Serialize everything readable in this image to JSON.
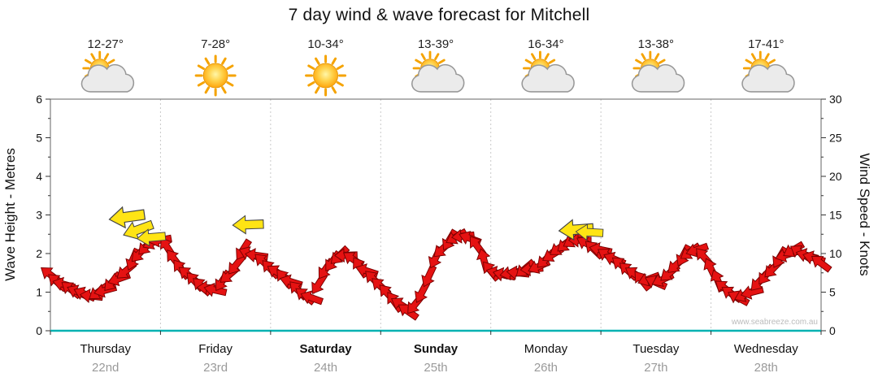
{
  "title": "7 day wind & wave forecast for Mitchell",
  "days": [
    {
      "name": "Thursday",
      "date": "22nd",
      "temp": "12-27°",
      "icon": "sun-cloud-icon",
      "bold": false
    },
    {
      "name": "Friday",
      "date": "23rd",
      "temp": "7-28°",
      "icon": "sun-icon",
      "bold": false
    },
    {
      "name": "Saturday",
      "date": "24th",
      "temp": "10-34°",
      "icon": "sun-icon",
      "bold": true
    },
    {
      "name": "Sunday",
      "date": "25th",
      "temp": "13-39°",
      "icon": "sun-cloud-icon",
      "bold": true
    },
    {
      "name": "Monday",
      "date": "26th",
      "temp": "16-34°",
      "icon": "sun-cloud-icon",
      "bold": false
    },
    {
      "name": "Tuesday",
      "date": "27th",
      "temp": "13-38°",
      "icon": "sun-cloud-icon",
      "bold": false
    },
    {
      "name": "Wednesday",
      "date": "28th",
      "temp": "17-41°",
      "icon": "sun-cloud-icon",
      "bold": false
    }
  ],
  "chart_data": {
    "type": "line",
    "title": "7 day wind & wave forecast for Mitchell",
    "ylabel_left": "Wave Height - Metres",
    "ylabel_right": "Wind Speed - Knots",
    "ylim_left": [
      0,
      6
    ],
    "ylim_right": [
      0,
      30
    ],
    "yticks_left": [
      0,
      1,
      2,
      3,
      4,
      5,
      6
    ],
    "yticks_right": [
      0,
      5,
      10,
      15,
      20,
      25,
      30
    ],
    "x_days": [
      "Thursday 22nd",
      "Friday 23rd",
      "Saturday 24th",
      "Sunday 25th",
      "Monday 26th",
      "Tuesday 27th",
      "Wednesday 28th"
    ],
    "points_per_day": 8,
    "series_name": "Wind/wave arrows (red)",
    "wave_height_m": [
      1.45,
      1.2,
      1.0,
      0.9,
      1.05,
      1.35,
      1.85,
      2.2,
      2.35,
      1.85,
      1.45,
      1.15,
      1.05,
      1.45,
      2.1,
      1.95,
      1.6,
      1.35,
      1.05,
      0.85,
      1.6,
      1.95,
      1.85,
      1.55,
      1.15,
      0.75,
      0.5,
      1.0,
      1.9,
      2.35,
      2.45,
      2.2,
      1.55,
      1.45,
      1.5,
      1.6,
      1.85,
      2.15,
      2.35,
      2.25,
      2.1,
      1.85,
      1.55,
      1.3,
      1.25,
      1.5,
      1.95,
      2.1,
      1.6,
      1.1,
      0.85,
      1.0,
      1.45,
      1.9,
      2.1,
      1.95,
      1.75
    ],
    "strong_wind_arrows": [
      {
        "day": 0.7,
        "value": 2.95,
        "rot": 172,
        "scale": 1.5
      },
      {
        "day": 0.8,
        "value": 2.62,
        "rot": 160,
        "scale": 1.3
      },
      {
        "day": 0.92,
        "value": 2.42,
        "rot": 175,
        "scale": 1.2
      },
      {
        "day": 1.8,
        "value": 2.75,
        "rot": 178,
        "scale": 1.3
      },
      {
        "day": 4.78,
        "value": 2.62,
        "rot": 176,
        "scale": 1.45
      },
      {
        "day": 4.9,
        "value": 2.55,
        "rot": 183,
        "scale": 1.15
      }
    ],
    "arrow_color": "#e51212",
    "strong_arrow_color": "#ffe414",
    "axis_color": "#00b2b2",
    "watermark": "www.seabreeze.com.au"
  }
}
